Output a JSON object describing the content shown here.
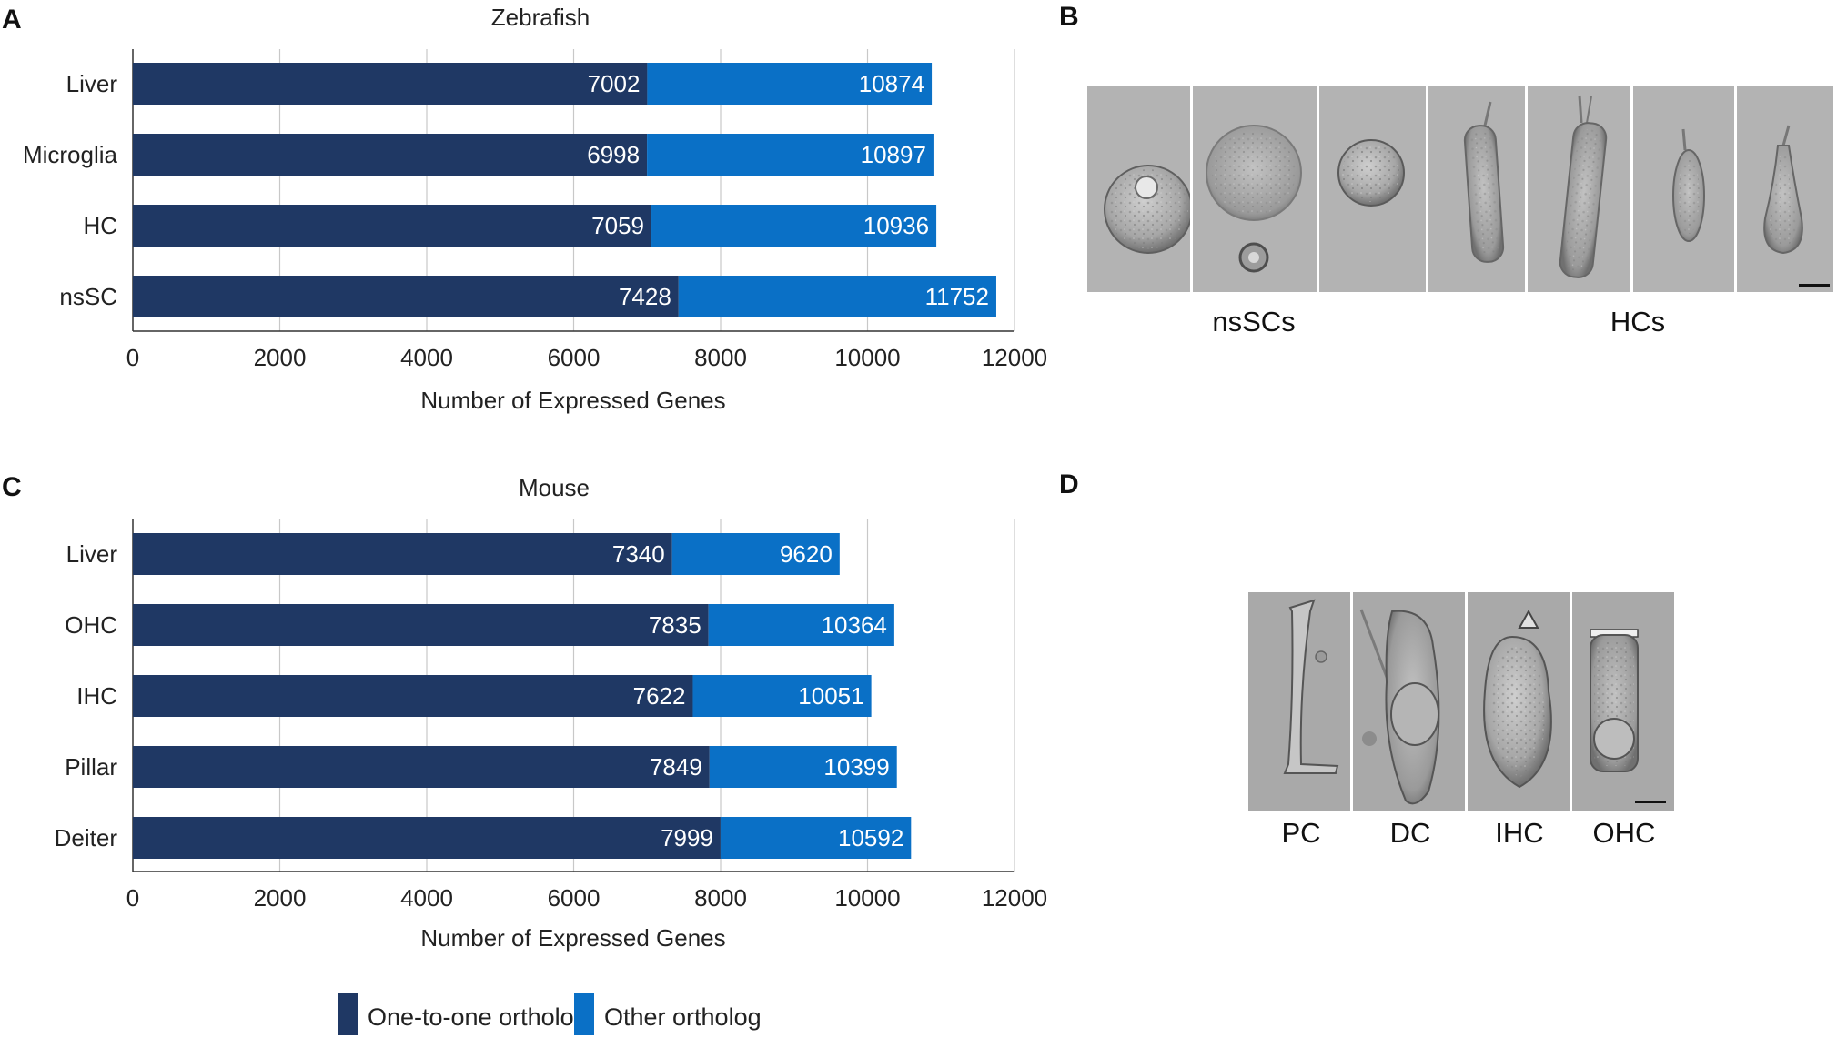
{
  "panel_letters": {
    "a": "A",
    "b": "B",
    "c": "C",
    "d": "D"
  },
  "colors": {
    "one_to_one": "#1f3864",
    "other": "#0a70c6",
    "grid": "#c8c8c8",
    "axis": "#333333"
  },
  "chart_data": [
    {
      "type": "bar",
      "orientation": "horizontal",
      "stacked": true,
      "title": "Zebrafish",
      "categories": [
        "Liver",
        "Microglia",
        "HC",
        "nsSC"
      ],
      "series": [
        {
          "name": "One-to-one ortholog",
          "values": [
            7002,
            6998,
            7059,
            7428
          ]
        },
        {
          "name": "Other ortholog",
          "values": [
            3872,
            3899,
            3877,
            4324
          ]
        }
      ],
      "data_labels": {
        "one_to_one": [
          "7002",
          "6998",
          "7059",
          "7428"
        ],
        "other": [
          "10874",
          "10897",
          "10936",
          "11752"
        ]
      },
      "totals": [
        10874,
        10897,
        10936,
        11752
      ],
      "xlabel": "Number of Expressed Genes",
      "xlim": [
        0,
        12000
      ],
      "xticks": [
        "0",
        "2000",
        "4000",
        "6000",
        "8000",
        "10000",
        "12000"
      ],
      "grid": true
    },
    {
      "type": "bar",
      "orientation": "horizontal",
      "stacked": true,
      "title": "Mouse",
      "categories": [
        "Liver",
        "OHC",
        "IHC",
        "Pillar",
        "Deiter"
      ],
      "series": [
        {
          "name": "One-to-one ortholog",
          "values": [
            7340,
            7835,
            7622,
            7849,
            7999
          ]
        },
        {
          "name": "Other ortholog",
          "values": [
            2280,
            2529,
            2429,
            2550,
            2593
          ]
        }
      ],
      "data_labels": {
        "one_to_one": [
          "7340",
          "7835",
          "7622",
          "7849",
          "7999"
        ],
        "other": [
          "9620",
          "10364",
          "10051",
          "10399",
          "10592"
        ]
      },
      "totals": [
        9620,
        10364,
        10051,
        10399,
        10592
      ],
      "xlabel": "Number of Expressed Genes",
      "xlim": [
        0,
        12000
      ],
      "xticks": [
        "0",
        "2000",
        "4000",
        "6000",
        "8000",
        "10000",
        "12000"
      ],
      "grid": true
    }
  ],
  "legend": {
    "position": "bottom",
    "items": [
      {
        "label": "One-to-one ortholog",
        "color": "#1f3864"
      },
      {
        "label": "Other ortholog",
        "color": "#0a70c6"
      }
    ]
  },
  "micrographs_b": {
    "labels": [
      "nsSCs",
      "HCs"
    ]
  },
  "micrographs_d": {
    "labels": [
      "PC",
      "DC",
      "IHC",
      "OHC"
    ]
  }
}
